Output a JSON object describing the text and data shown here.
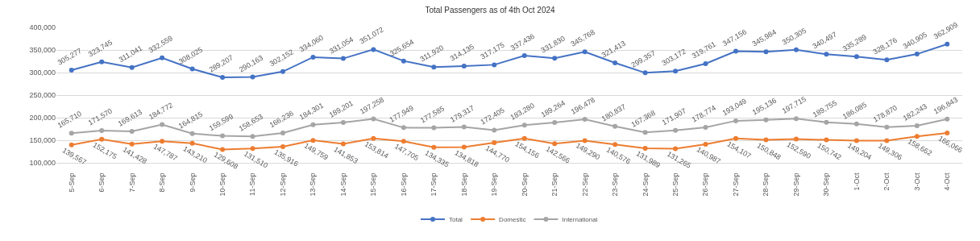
{
  "chart_data": {
    "type": "line",
    "title": "Total Passengers as of 4th Oct 2024",
    "categories": [
      "5-Sep",
      "6-Sep",
      "7-Sep",
      "8-Sep",
      "9-Sep",
      "10-Sep",
      "11-Sep",
      "12-Sep",
      "13-Sep",
      "14-Sep",
      "15-Sep",
      "16-Sep",
      "17-Sep",
      "18-Sep",
      "19-Sep",
      "20-Sep",
      "21-Sep",
      "22-Sep",
      "23-Sep",
      "24-Sep",
      "25-Sep",
      "26-Sep",
      "27-Sep",
      "28-Sep",
      "29-Sep",
      "30-Sep",
      "1-Oct",
      "2-Oct",
      "3-Oct",
      "4-Oct"
    ],
    "series": [
      {
        "name": "Total",
        "color": "#4472c4",
        "values": [
          305277,
          323745,
          311041,
          332559,
          308025,
          289207,
          290163,
          302152,
          334060,
          331054,
          351072,
          325654,
          311920,
          314135,
          317175,
          337436,
          331830,
          345768,
          321413,
          299357,
          303172,
          319761,
          347156,
          345984,
          350305,
          340497,
          335289,
          328176,
          340905,
          362909
        ],
        "value_labels": [
          "305,277",
          "323,745",
          "311,041",
          "332,559",
          "308,025",
          "289,207",
          "290,163",
          "302,152",
          "334,060",
          "331,054",
          "351,072",
          "325,654",
          "311,920",
          "314,135",
          "317,175",
          "337,436",
          "331,830",
          "345,768",
          "321,413",
          "299,357",
          "303,172",
          "319,761",
          "347,156",
          "345,984",
          "350,305",
          "340,497",
          "335,289",
          "328,176",
          "340,905",
          "362,909"
        ]
      },
      {
        "name": "Domestic",
        "color": "#ed7d31",
        "values": [
          139567,
          152175,
          141428,
          147787,
          143210,
          129608,
          131510,
          135916,
          149759,
          141853,
          153814,
          147705,
          134335,
          134818,
          144770,
          154156,
          142566,
          149290,
          140576,
          131989,
          131265,
          140987,
          154107,
          150848,
          152590,
          150742,
          149204,
          149306,
          158662,
          166066
        ],
        "value_labels": [
          "139,567",
          "152,175",
          "141,428",
          "147,787",
          "143,210",
          "129,608",
          "131,510",
          "135,916",
          "149,759",
          "141,853",
          "153,814",
          "147,705",
          "134,335",
          "134,818",
          "144,770",
          "154,156",
          "142,566",
          "149,290",
          "140,576",
          "131,989",
          "131,265",
          "140,987",
          "154,107",
          "150,848",
          "152,590",
          "150,742",
          "149,204",
          "149,306",
          "158,662",
          "166,066"
        ]
      },
      {
        "name": "International",
        "color": "#a5a5a5",
        "values": [
          165710,
          171570,
          169613,
          184772,
          164815,
          159599,
          158653,
          166236,
          184301,
          189201,
          197258,
          177949,
          177585,
          179317,
          172405,
          183280,
          189264,
          196478,
          180837,
          167368,
          171907,
          178774,
          193049,
          195136,
          197715,
          189755,
          186085,
          178870,
          182243,
          196843
        ],
        "value_labels": [
          "165,710",
          "171,570",
          "169,613",
          "184,772",
          "164,815",
          "159,599",
          "158,653",
          "166,236",
          "184,301",
          "189,201",
          "197,258",
          "177,949",
          "177,585",
          "179,317",
          "172,405",
          "183,280",
          "189,264",
          "196,478",
          "180,837",
          "167,368",
          "171,907",
          "178,774",
          "193,049",
          "195,136",
          "197,715",
          "189,755",
          "186,085",
          "178,870",
          "182,243",
          "196,843"
        ]
      }
    ],
    "ylim": [
      100000,
      400000
    ],
    "yticks": [
      {
        "value": 100000,
        "label": "100,000"
      },
      {
        "value": 150000,
        "label": "150,000"
      },
      {
        "value": 200000,
        "label": "200,000"
      },
      {
        "value": 250000,
        "label": "250,000"
      },
      {
        "value": 300000,
        "label": "300,000"
      },
      {
        "value": 350000,
        "label": "350,000"
      },
      {
        "value": 400000,
        "label": "400,000"
      }
    ],
    "grid": "y",
    "legend": "bottom",
    "marker": "circle",
    "line_style": "solid"
  }
}
